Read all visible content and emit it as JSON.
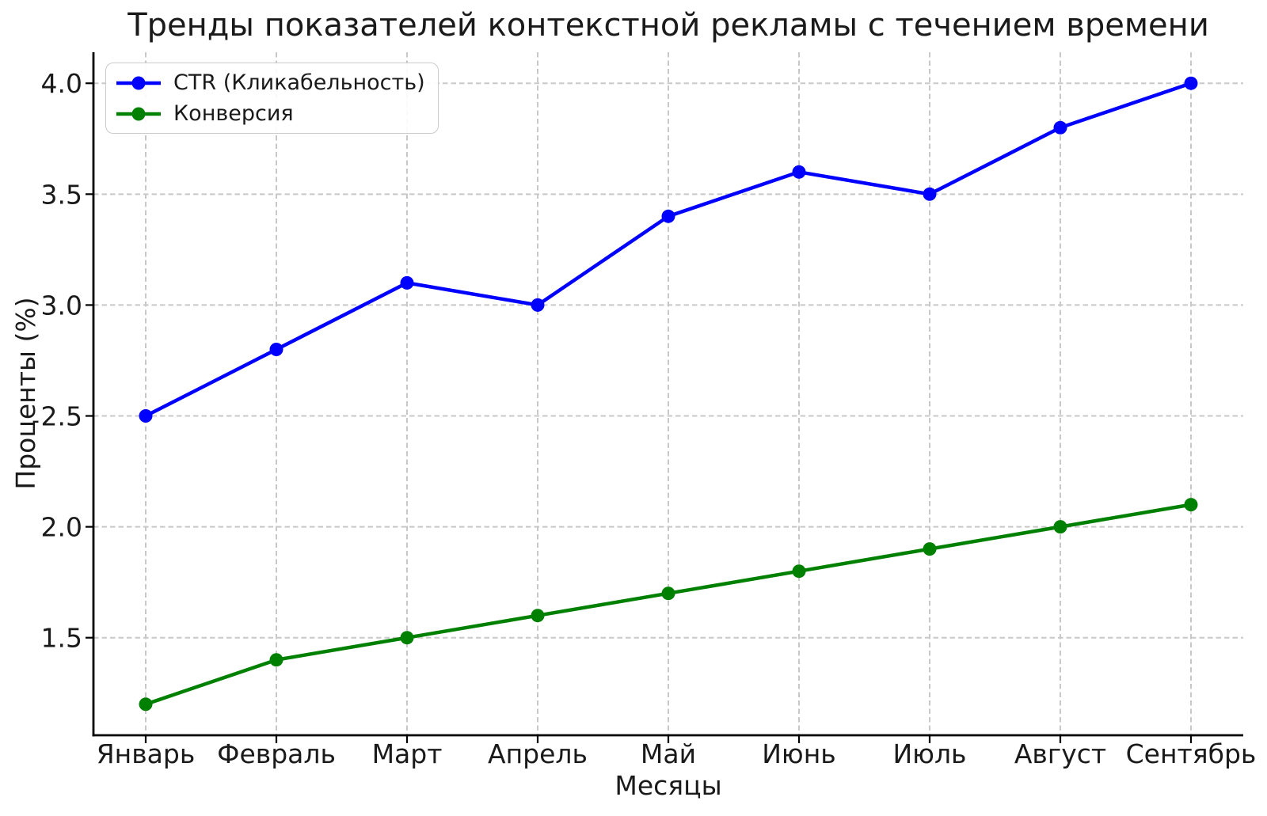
{
  "chart_data": {
    "type": "line",
    "title": "Тренды показателей контекстной рекламы с течением времени",
    "xlabel": "Месяцы",
    "ylabel": "Проценты (%)",
    "categories": [
      "Январь",
      "Февраль",
      "Март",
      "Апрель",
      "Май",
      "Июнь",
      "Июль",
      "Август",
      "Сентябрь"
    ],
    "series": [
      {
        "name": "CTR (Кликабельность)",
        "color": "#0000ff",
        "values": [
          2.5,
          2.8,
          3.1,
          3.0,
          3.4,
          3.6,
          3.5,
          3.8,
          4.0
        ]
      },
      {
        "name": "Конверсия",
        "color": "#008000",
        "values": [
          1.2,
          1.4,
          1.5,
          1.6,
          1.7,
          1.8,
          1.9,
          2.0,
          2.1
        ]
      }
    ],
    "yticks": [
      "1.5",
      "2.0",
      "2.5",
      "3.0",
      "3.5",
      "4.0"
    ],
    "ylim": [
      1.06,
      4.14
    ],
    "x_margin": 0.4,
    "grid": {
      "style": "dashed",
      "color": "#c8c8c8"
    },
    "legend_position": "upper-left",
    "colors": {
      "axis": "#000000",
      "text": "#1a1a1a",
      "background": "#ffffff"
    }
  }
}
